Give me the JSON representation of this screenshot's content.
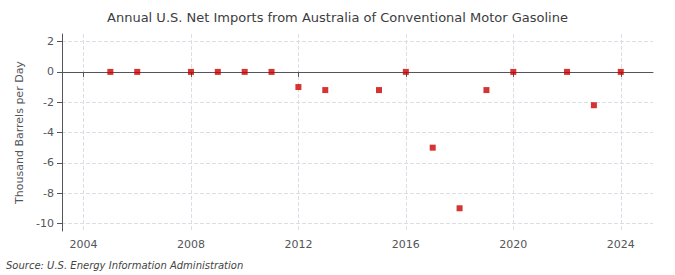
{
  "chart_data": {
    "type": "scatter",
    "title": "Annual U.S. Net Imports from Australia of Conventional Motor Gasoline",
    "ylabel": "Thousand Barrels per Day",
    "annotation": "Source: U.S. Energy Information Administration",
    "x": [
      2005,
      2006,
      2008,
      2009,
      2010,
      2011,
      2012,
      2013,
      2015,
      2016,
      2017,
      2018,
      2019,
      2020,
      2022,
      2023,
      2024
    ],
    "values": [
      0,
      0,
      0,
      0,
      0,
      0,
      -1.0,
      -1.2,
      -1.2,
      0,
      -5.0,
      -9.0,
      -1.2,
      0,
      0,
      -2.2,
      0
    ],
    "color": "#cc0000",
    "marker": "square",
    "xlim": [
      2003.2,
      2025.2
    ],
    "xticks": [
      2004,
      2008,
      2012,
      2016,
      2020,
      2024
    ],
    "ylim": [
      -10.5,
      2.5
    ],
    "yticks": [
      2,
      0,
      -2,
      -4,
      -6,
      -8,
      -10
    ],
    "grid": true
  }
}
